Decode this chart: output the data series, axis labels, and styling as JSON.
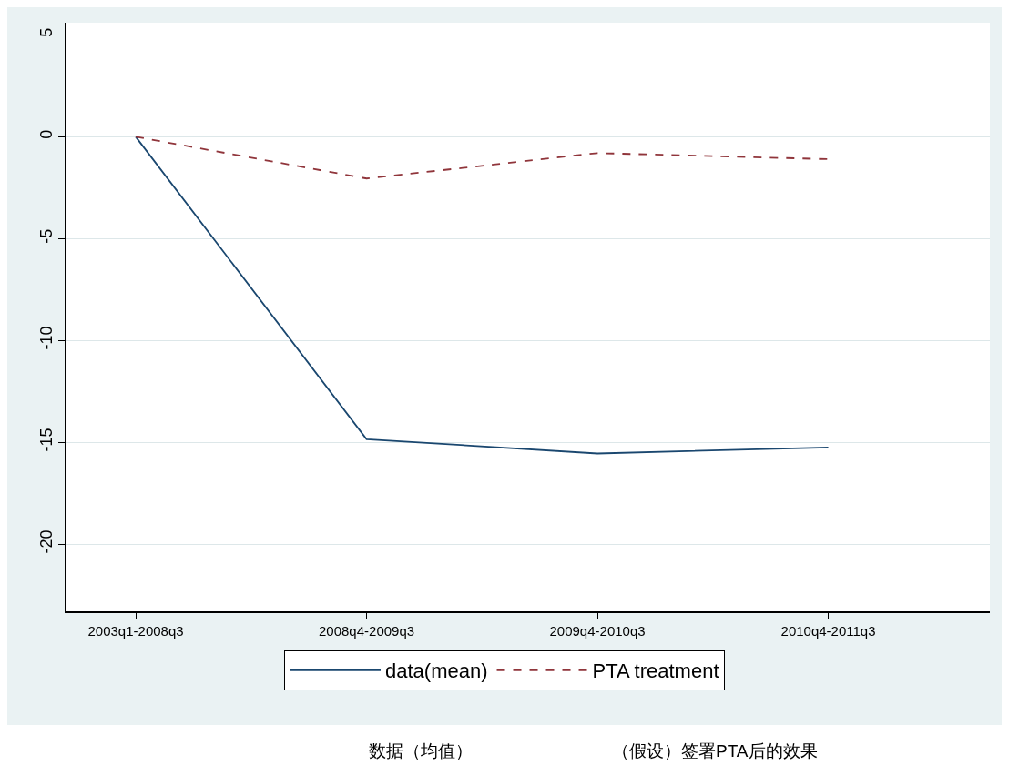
{
  "chart_data": {
    "type": "line",
    "categories": [
      "2003q1-2008q3",
      "2008q4-2009q3",
      "2009q4-2010q3",
      "2010q4-2011q3"
    ],
    "series": [
      {
        "name": "data(mean)",
        "color": "#1a476f",
        "values": [
          0,
          -14.85,
          -15.55,
          -15.25
        ],
        "line_style": "solid"
      },
      {
        "name": "PTA treatment",
        "color": "#90353b",
        "values": [
          0,
          -2.05,
          -0.8,
          -1.1
        ],
        "line_style": "dashed"
      }
    ],
    "ylim": [
      -23.3,
      5.6
    ],
    "yticks": [
      -20,
      -15,
      -10,
      -5,
      0,
      5
    ],
    "grid": "y",
    "legend": "bottom",
    "marker": "none",
    "annotations": [
      "数据（均值）",
      "（假设）签署PTA后的效果"
    ]
  }
}
